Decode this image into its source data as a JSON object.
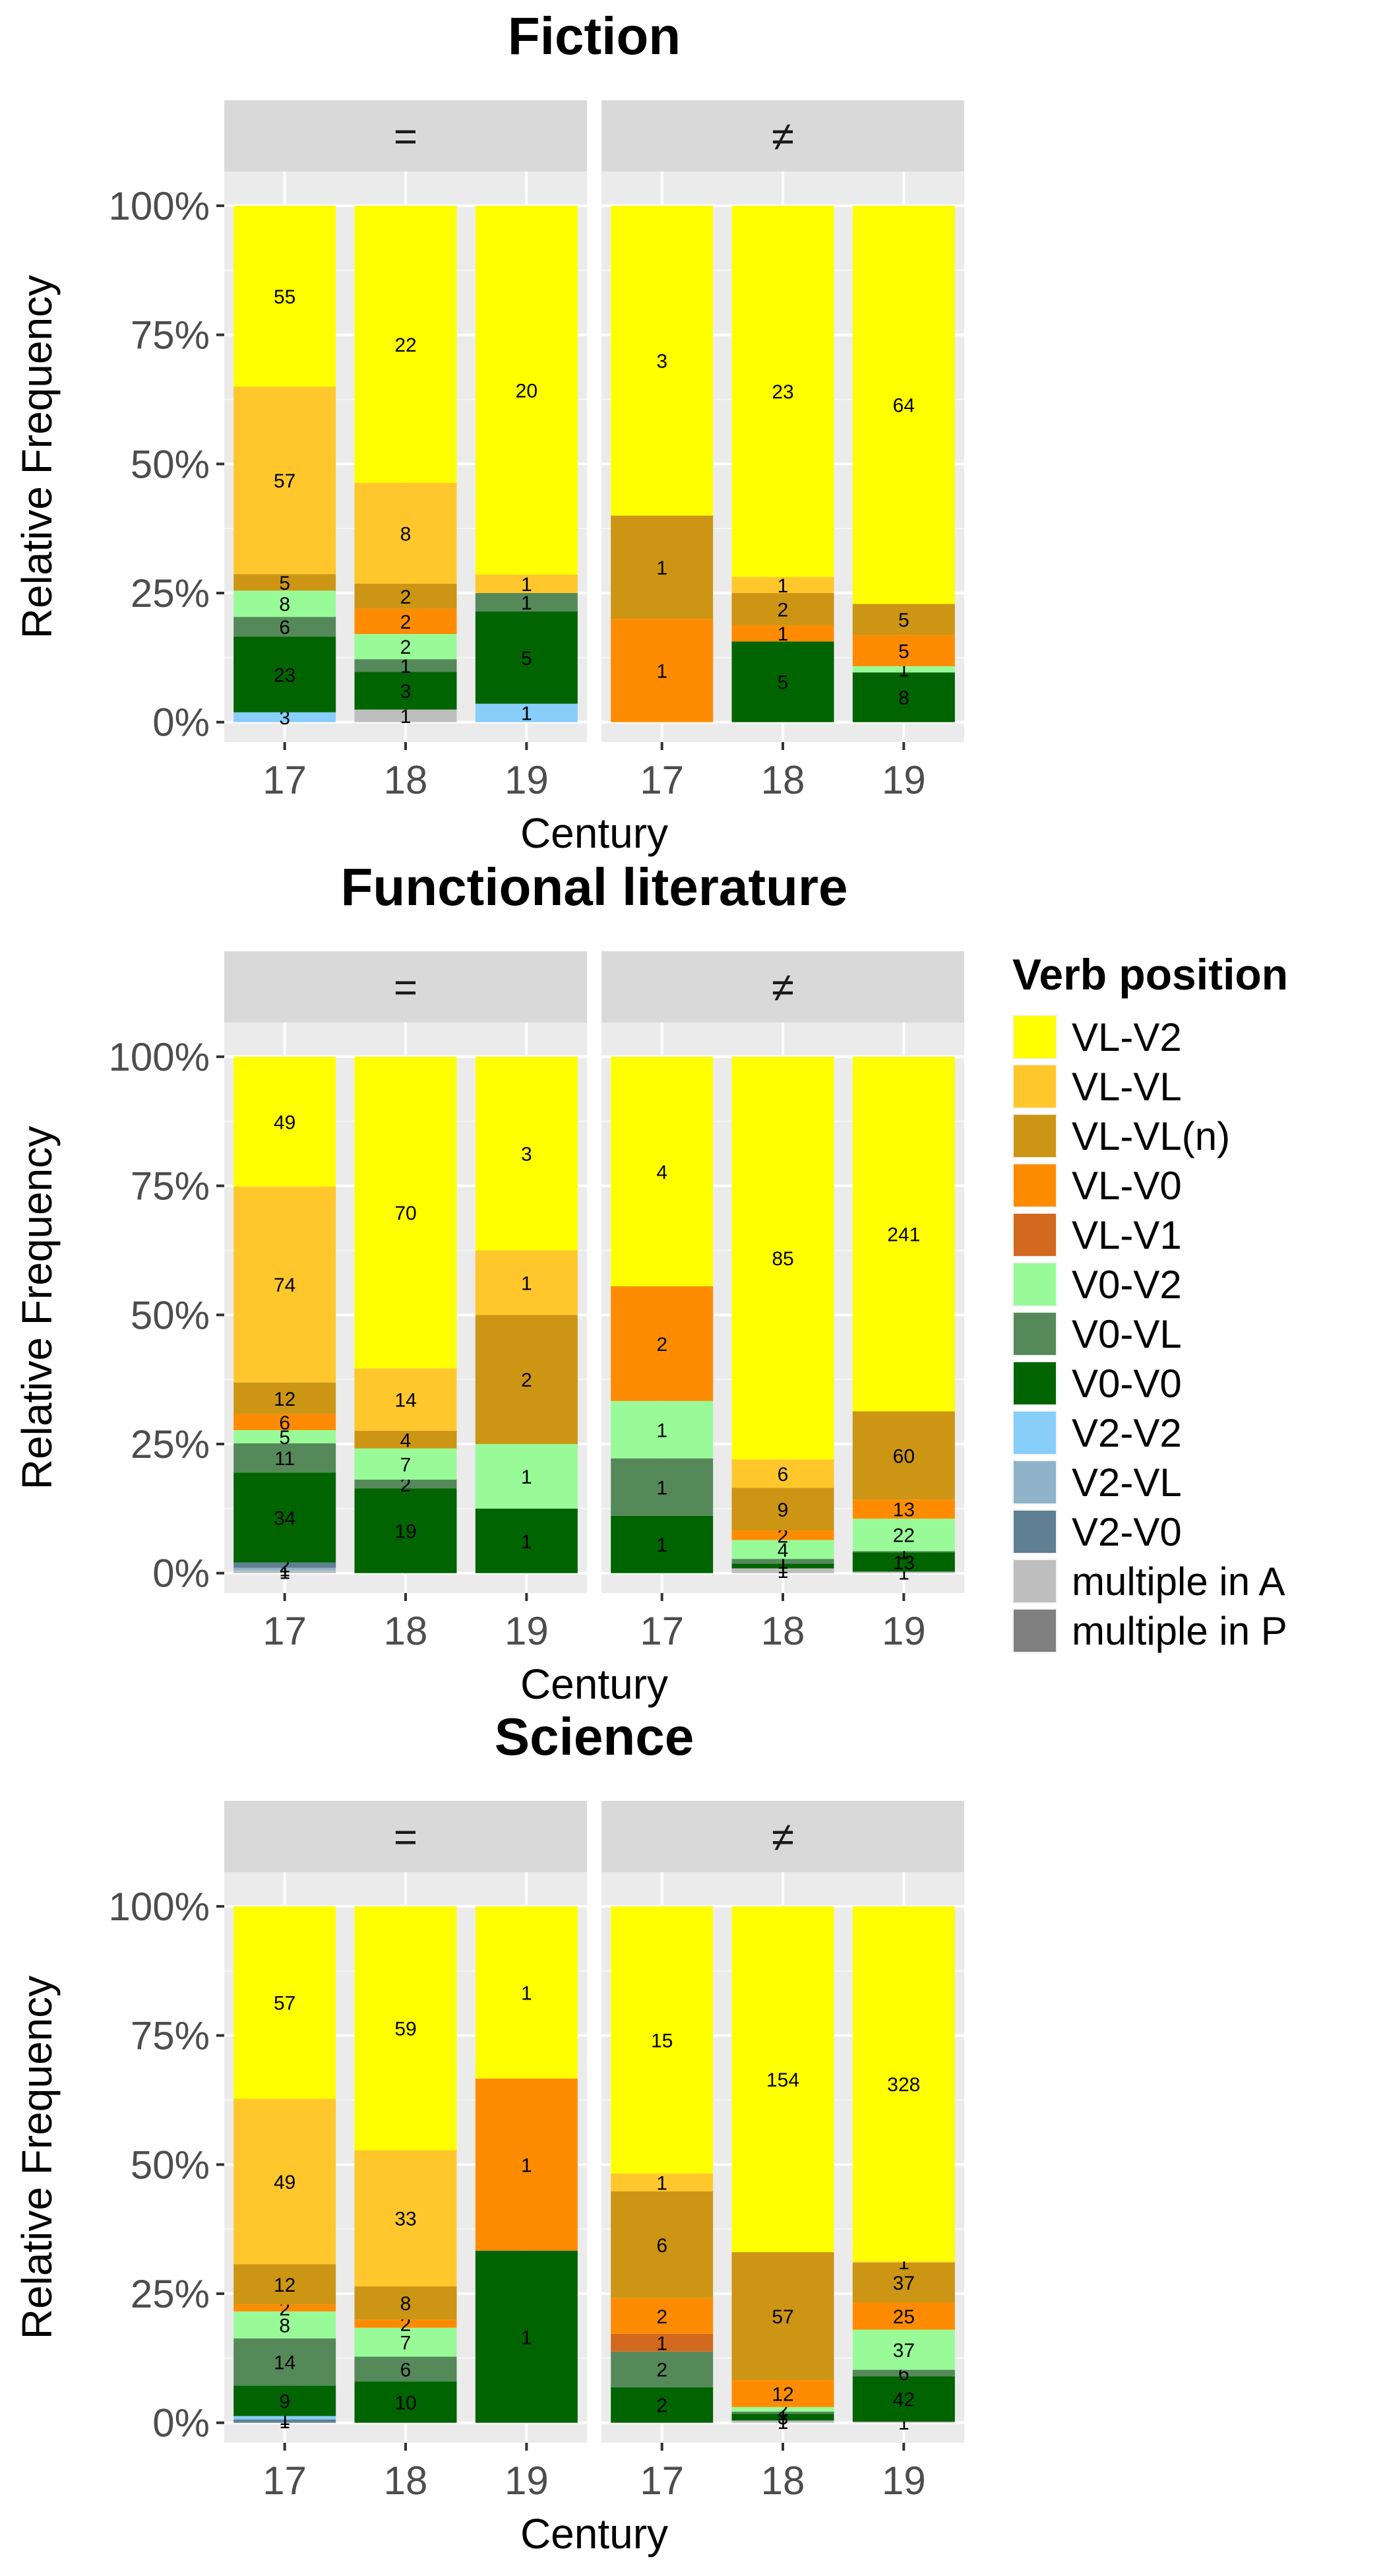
{
  "legend": {
    "title": "Verb position",
    "items": [
      {
        "label": "VL-V2",
        "color": "#FFFF00"
      },
      {
        "label": "VL-VL",
        "color": "#FFC72C"
      },
      {
        "label": "VL-VL(n)",
        "color": "#CC9514"
      },
      {
        "label": "VL-V0",
        "color": "#FF8C00"
      },
      {
        "label": "VL-V1",
        "color": "#D2691E"
      },
      {
        "label": "V0-V2",
        "color": "#98FB98"
      },
      {
        "label": "V0-VL",
        "color": "#55895A"
      },
      {
        "label": "V0-V0",
        "color": "#006400"
      },
      {
        "label": "V2-V2",
        "color": "#87CEFA"
      },
      {
        "label": "V2-VL",
        "color": "#8FB3C8"
      },
      {
        "label": "V2-V0",
        "color": "#5F7F93"
      },
      {
        "label": "multiple in A",
        "color": "#BEBEBE"
      },
      {
        "label": "multiple in P",
        "color": "#808080"
      }
    ]
  },
  "chart_data": [
    {
      "type": "bar",
      "stacked": "percent",
      "title": "Fiction",
      "xlabel": "Century",
      "ylabel": "Relative Frequency",
      "y_ticks": [
        "0%",
        "25%",
        "50%",
        "75%",
        "100%"
      ],
      "categories": [
        "17",
        "18",
        "19"
      ],
      "facets": [
        {
          "label": "=",
          "bars": [
            {
              "x": "17",
              "segments": [
                {
                  "series": "V2-V2",
                  "value": 3
                },
                {
                  "series": "V0-V0",
                  "value": 23
                },
                {
                  "series": "V0-VL",
                  "value": 6
                },
                {
                  "series": "V0-V2",
                  "value": 8
                },
                {
                  "series": "VL-VL(n)",
                  "value": 5
                },
                {
                  "series": "VL-VL",
                  "value": 57
                },
                {
                  "series": "VL-V2",
                  "value": 55
                }
              ]
            },
            {
              "x": "18",
              "segments": [
                {
                  "series": "multiple in A",
                  "value": 1
                },
                {
                  "series": "V0-V0",
                  "value": 3
                },
                {
                  "series": "V0-VL",
                  "value": 1
                },
                {
                  "series": "V0-V2",
                  "value": 2
                },
                {
                  "series": "VL-V0",
                  "value": 2
                },
                {
                  "series": "VL-VL(n)",
                  "value": 2
                },
                {
                  "series": "VL-VL",
                  "value": 8
                },
                {
                  "series": "VL-V2",
                  "value": 22
                }
              ]
            },
            {
              "x": "19",
              "segments": [
                {
                  "series": "V2-V2",
                  "value": 1
                },
                {
                  "series": "V0-V0",
                  "value": 5
                },
                {
                  "series": "V0-VL",
                  "value": 1
                },
                {
                  "series": "VL-VL",
                  "value": 1
                },
                {
                  "series": "VL-V2",
                  "value": 20
                }
              ]
            }
          ]
        },
        {
          "label": "≠",
          "bars": [
            {
              "x": "17",
              "segments": [
                {
                  "series": "VL-V0",
                  "value": 1
                },
                {
                  "series": "VL-VL(n)",
                  "value": 1
                },
                {
                  "series": "VL-V2",
                  "value": 3
                }
              ]
            },
            {
              "x": "18",
              "segments": [
                {
                  "series": "V0-V0",
                  "value": 5
                },
                {
                  "series": "VL-V0",
                  "value": 1
                },
                {
                  "series": "VL-VL(n)",
                  "value": 2
                },
                {
                  "series": "VL-VL",
                  "value": 1
                },
                {
                  "series": "VL-V2",
                  "value": 23
                }
              ]
            },
            {
              "x": "19",
              "segments": [
                {
                  "series": "V0-V0",
                  "value": 8
                },
                {
                  "series": "V0-V2",
                  "value": 1
                },
                {
                  "series": "VL-V0",
                  "value": 5
                },
                {
                  "series": "VL-VL(n)",
                  "value": 5
                },
                {
                  "series": "VL-V2",
                  "value": 64
                }
              ]
            }
          ]
        }
      ]
    },
    {
      "type": "bar",
      "stacked": "percent",
      "title": "Functional literature",
      "xlabel": "Century",
      "ylabel": "Relative Frequency",
      "y_ticks": [
        "0%",
        "25%",
        "50%",
        "75%",
        "100%"
      ],
      "categories": [
        "17",
        "18",
        "19"
      ],
      "facets": [
        {
          "label": "=",
          "bars": [
            {
              "x": "17",
              "segments": [
                {
                  "series": "multiple in A",
                  "value": 1
                },
                {
                  "series": "V2-VL",
                  "value": 1
                },
                {
                  "series": "V2-V0",
                  "value": 2
                },
                {
                  "series": "V0-V0",
                  "value": 34
                },
                {
                  "series": "V0-VL",
                  "value": 11
                },
                {
                  "series": "V0-V2",
                  "value": 5
                },
                {
                  "series": "VL-V0",
                  "value": 6
                },
                {
                  "series": "VL-VL(n)",
                  "value": 12
                },
                {
                  "series": "VL-VL",
                  "value": 74
                },
                {
                  "series": "VL-V2",
                  "value": 49
                }
              ]
            },
            {
              "x": "18",
              "segments": [
                {
                  "series": "V0-V0",
                  "value": 19
                },
                {
                  "series": "V0-VL",
                  "value": 2
                },
                {
                  "series": "V0-V2",
                  "value": 7
                },
                {
                  "series": "VL-VL(n)",
                  "value": 4
                },
                {
                  "series": "VL-VL",
                  "value": 14
                },
                {
                  "series": "VL-V2",
                  "value": 70
                }
              ]
            },
            {
              "x": "19",
              "segments": [
                {
                  "series": "V0-V0",
                  "value": 1
                },
                {
                  "series": "V0-V2",
                  "value": 1
                },
                {
                  "series": "VL-VL(n)",
                  "value": 2
                },
                {
                  "series": "VL-VL",
                  "value": 1
                },
                {
                  "series": "VL-V2",
                  "value": 3
                }
              ]
            }
          ]
        },
        {
          "label": "≠",
          "bars": [
            {
              "x": "17",
              "segments": [
                {
                  "series": "V0-V0",
                  "value": 1
                },
                {
                  "series": "V0-VL",
                  "value": 1
                },
                {
                  "series": "V0-V2",
                  "value": 1
                },
                {
                  "series": "VL-V0",
                  "value": 2
                },
                {
                  "series": "VL-V2",
                  "value": 4
                }
              ]
            },
            {
              "x": "18",
              "segments": [
                {
                  "series": "multiple in A",
                  "value": 1
                },
                {
                  "series": "V0-V0",
                  "value": 1
                },
                {
                  "series": "V0-VL",
                  "value": 1
                },
                {
                  "series": "V0-V2",
                  "value": 4
                },
                {
                  "series": "VL-V0",
                  "value": 2
                },
                {
                  "series": "VL-VL(n)",
                  "value": 9
                },
                {
                  "series": "VL-VL",
                  "value": 6
                },
                {
                  "series": "VL-V2",
                  "value": 85
                }
              ]
            },
            {
              "x": "19",
              "segments": [
                {
                  "series": "multiple in A",
                  "value": 1
                },
                {
                  "series": "V0-V0",
                  "value": 13
                },
                {
                  "series": "V0-VL",
                  "value": 1
                },
                {
                  "series": "V0-V2",
                  "value": 22
                },
                {
                  "series": "VL-V0",
                  "value": 13
                },
                {
                  "series": "VL-VL(n)",
                  "value": 60
                },
                {
                  "series": "VL-V2",
                  "value": 241
                }
              ]
            }
          ]
        }
      ]
    },
    {
      "type": "bar",
      "stacked": "percent",
      "title": "Science",
      "xlabel": "Century",
      "ylabel": "Relative Frequency",
      "y_ticks": [
        "0%",
        "25%",
        "50%",
        "75%",
        "100%"
      ],
      "categories": [
        "17",
        "18",
        "19"
      ],
      "facets": [
        {
          "label": "=",
          "bars": [
            {
              "x": "17",
              "segments": [
                {
                  "series": "V2-V0",
                  "value": 1
                },
                {
                  "series": "V2-V2",
                  "value": 1
                },
                {
                  "series": "V0-V0",
                  "value": 9
                },
                {
                  "series": "V0-VL",
                  "value": 14
                },
                {
                  "series": "V0-V2",
                  "value": 8
                },
                {
                  "series": "VL-V0",
                  "value": 2
                },
                {
                  "series": "VL-VL(n)",
                  "value": 12
                },
                {
                  "series": "VL-VL",
                  "value": 49
                },
                {
                  "series": "VL-V2",
                  "value": 57
                }
              ]
            },
            {
              "x": "18",
              "segments": [
                {
                  "series": "V0-V0",
                  "value": 10
                },
                {
                  "series": "V0-VL",
                  "value": 6
                },
                {
                  "series": "V0-V2",
                  "value": 7
                },
                {
                  "series": "VL-V0",
                  "value": 2
                },
                {
                  "series": "VL-VL(n)",
                  "value": 8
                },
                {
                  "series": "VL-VL",
                  "value": 33
                },
                {
                  "series": "VL-V2",
                  "value": 59
                }
              ]
            },
            {
              "x": "19",
              "segments": [
                {
                  "series": "V0-V0",
                  "value": 1
                },
                {
                  "series": "VL-V0",
                  "value": 1
                },
                {
                  "series": "VL-V2",
                  "value": 1
                }
              ]
            }
          ]
        },
        {
          "label": "≠",
          "bars": [
            {
              "x": "17",
              "segments": [
                {
                  "series": "V0-V0",
                  "value": 2
                },
                {
                  "series": "V0-VL",
                  "value": 2
                },
                {
                  "series": "VL-V1",
                  "value": 1
                },
                {
                  "series": "VL-V0",
                  "value": 2
                },
                {
                  "series": "VL-VL(n)",
                  "value": 6
                },
                {
                  "series": "VL-VL",
                  "value": 1
                },
                {
                  "series": "VL-V2",
                  "value": 15
                }
              ]
            },
            {
              "x": "18",
              "segments": [
                {
                  "series": "multiple in A",
                  "value": 1
                },
                {
                  "series": "V0-V0",
                  "value": 3
                },
                {
                  "series": "V0-VL",
                  "value": 1
                },
                {
                  "series": "V0-V2",
                  "value": 2
                },
                {
                  "series": "VL-V0",
                  "value": 12
                },
                {
                  "series": "VL-VL(n)",
                  "value": 57
                },
                {
                  "series": "VL-V2",
                  "value": 154
                }
              ]
            },
            {
              "x": "19",
              "segments": [
                {
                  "series": "multiple in A",
                  "value": 1
                },
                {
                  "series": "V0-V0",
                  "value": 42
                },
                {
                  "series": "V0-VL",
                  "value": 6
                },
                {
                  "series": "V0-V2",
                  "value": 37
                },
                {
                  "series": "VL-V0",
                  "value": 25
                },
                {
                  "series": "VL-VL(n)",
                  "value": 37
                },
                {
                  "series": "VL-VL",
                  "value": 1
                },
                {
                  "series": "VL-V2",
                  "value": 328
                }
              ]
            }
          ]
        }
      ]
    }
  ]
}
